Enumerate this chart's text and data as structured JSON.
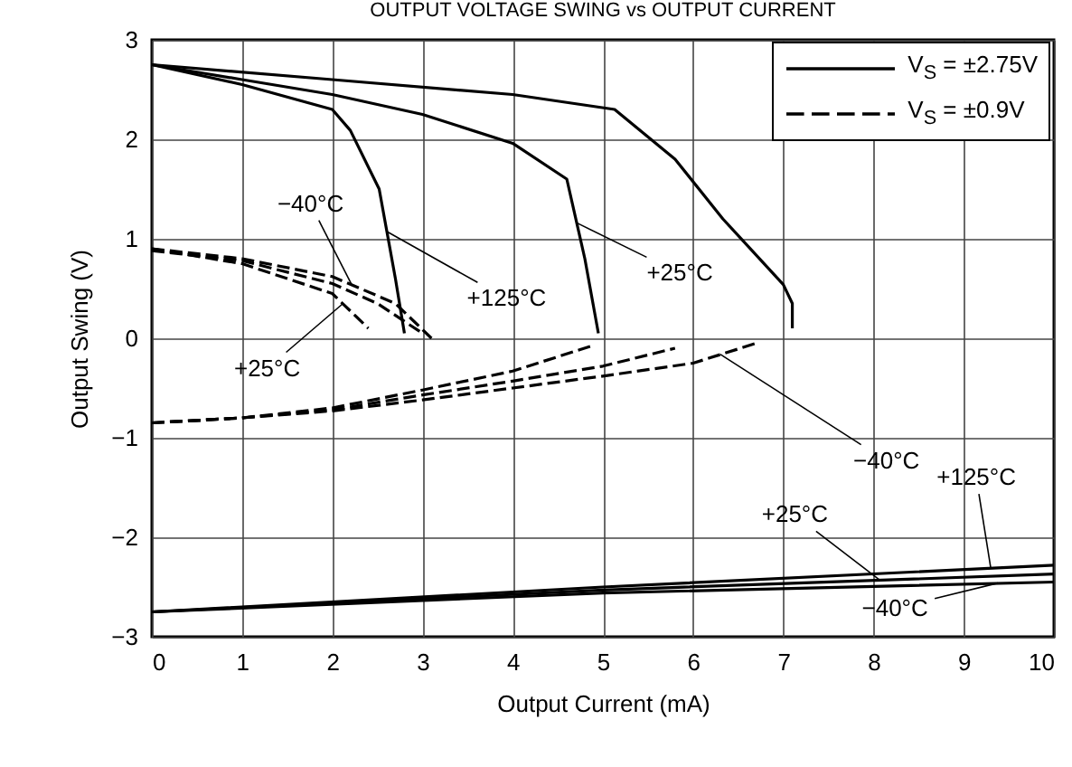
{
  "chart_data": {
    "type": "line",
    "title": "OUTPUT VOLTAGE SWING vs OUTPUT CURRENT",
    "xlabel": "Output Current (mA)",
    "ylabel": "Output Swing (V)",
    "xlim": [
      0,
      10
    ],
    "xticks": [
      0,
      1,
      2,
      3,
      4,
      5,
      6,
      7,
      8,
      9,
      10
    ],
    "ylim": [
      -3,
      3
    ],
    "yticks": [
      -3,
      -2,
      -1,
      0,
      1,
      2,
      3
    ],
    "grid": true,
    "legend": "top right",
    "series": [
      {
        "name": "V$_{S}$ = ±2.75V",
        "color": "#000000",
        "line_style": "solid",
        "x": [
          0,
          1,
          2,
          2.2,
          2.52,
          2.7,
          2.8
        ],
        "values": [
          2.75,
          2.55,
          2.3,
          2.09,
          1.5,
          0.6,
          0.05
        ]
      },
      {
        "color": "#000000",
        "line_style": "solid",
        "x": [
          0,
          1,
          2,
          3,
          4,
          4.6,
          4.8,
          4.95
        ],
        "values": [
          2.75,
          2.6,
          2.45,
          2.25,
          1.96,
          1.6,
          0.8,
          0.05
        ]
      },
      {
        "color": "#000000",
        "line_style": "solid",
        "x": [
          0,
          2,
          4,
          5.13,
          5.8,
          6.33,
          7.0,
          7.1,
          7.1
        ],
        "values": [
          2.75,
          2.6,
          2.45,
          2.3,
          1.8,
          1.2,
          0.54,
          0.35,
          0.1
        ]
      },
      {
        "color": "#000000",
        "line_style": "solid",
        "x": [
          0,
          5,
          10
        ],
        "values": [
          -2.75,
          -2.5,
          -2.28
        ]
      },
      {
        "color": "#000000",
        "line_style": "solid",
        "x": [
          0,
          5,
          10
        ],
        "values": [
          -2.75,
          -2.53,
          -2.37
        ]
      },
      {
        "color": "#000000",
        "line_style": "solid",
        "x": [
          0,
          5,
          10
        ],
        "values": [
          -2.75,
          -2.56,
          -2.45
        ]
      },
      {
        "name": "V$_{S}$ = ±0.9V",
        "color": "#000000",
        "line_style": "dashed",
        "x": [
          0,
          1,
          2,
          2.4
        ],
        "values": [
          0.9,
          0.75,
          0.45,
          0.1
        ]
      },
      {
        "color": "#000000",
        "line_style": "dashed",
        "x": [
          0,
          1,
          2,
          2.5,
          3.0
        ],
        "values": [
          0.88,
          0.78,
          0.55,
          0.35,
          0.05
        ]
      },
      {
        "color": "#000000",
        "line_style": "dashed",
        "x": [
          0,
          1,
          2,
          2.7,
          3.1
        ],
        "values": [
          0.9,
          0.8,
          0.62,
          0.35,
          0.0
        ]
      },
      {
        "color": "#000000",
        "line_style": "dashed",
        "x": [
          0,
          1,
          2,
          3,
          4,
          4.9
        ],
        "values": [
          -0.85,
          -0.8,
          -0.7,
          -0.52,
          -0.33,
          -0.07
        ]
      },
      {
        "color": "#000000",
        "line_style": "dashed",
        "x": [
          0,
          1,
          2,
          3,
          4,
          5,
          5.8
        ],
        "values": [
          -0.85,
          -0.8,
          -0.72,
          -0.57,
          -0.43,
          -0.28,
          -0.1
        ]
      },
      {
        "color": "#000000",
        "line_style": "dashed",
        "x": [
          0,
          1,
          2,
          3,
          4,
          5,
          6,
          6.7
        ],
        "values": [
          -0.85,
          -0.8,
          -0.73,
          -0.62,
          -0.5,
          -0.38,
          -0.25,
          -0.05
        ]
      }
    ],
    "annotations": [
      {
        "text": "−40°C",
        "x": 2.22,
        "y": 0.53
      },
      {
        "text": "+125°C",
        "x": 2.61,
        "y": 1.07
      },
      {
        "text": "+25°C",
        "x": 4.71,
        "y": 1.16
      },
      {
        "text": "+25°C",
        "x": 2.12,
        "y": 0.35
      },
      {
        "text": "−40°C",
        "x": 6.3,
        "y": -0.16
      },
      {
        "text": "+125°C",
        "x": 9.3,
        "y": -2.31
      },
      {
        "text": "+25°C",
        "x": 8.07,
        "y": -2.43
      },
      {
        "text": "−40°C",
        "x": 9.38,
        "y": -2.46
      }
    ]
  }
}
